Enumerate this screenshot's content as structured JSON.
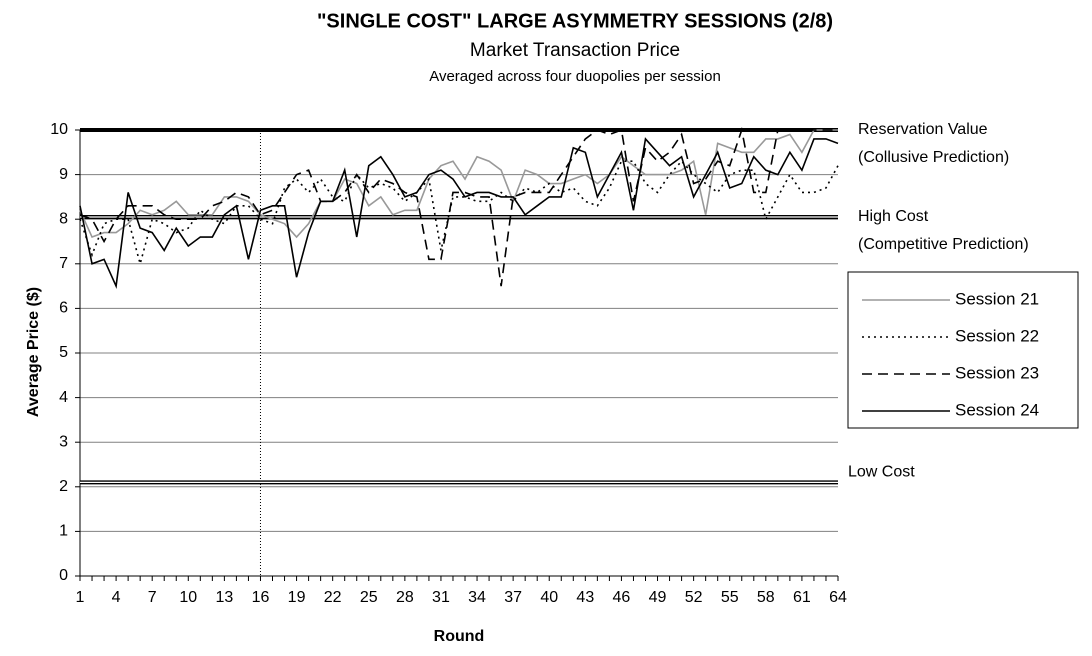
{
  "chart_data": {
    "type": "line",
    "title": "\"SINGLE COST\" LARGE ASYMMETRY SESSIONS (2/8)",
    "subtitle": "Market Transaction Price",
    "note": "Averaged across four duopolies per session",
    "y_label": "Average Price ($)",
    "x_label": "Round",
    "x": [
      1,
      2,
      3,
      4,
      5,
      6,
      7,
      8,
      9,
      10,
      11,
      12,
      13,
      14,
      15,
      16,
      17,
      18,
      19,
      20,
      21,
      22,
      23,
      24,
      25,
      26,
      27,
      28,
      29,
      30,
      31,
      32,
      33,
      34,
      35,
      36,
      37,
      38,
      39,
      40,
      41,
      42,
      43,
      44,
      45,
      46,
      47,
      48,
      49,
      50,
      51,
      52,
      53,
      54,
      55,
      56,
      57,
      58,
      59,
      60,
      61,
      62,
      63,
      64
    ],
    "xlim": [
      1,
      64
    ],
    "xticks": [
      1,
      4,
      7,
      10,
      13,
      16,
      19,
      22,
      25,
      28,
      31,
      34,
      37,
      40,
      43,
      46,
      49,
      52,
      55,
      58,
      61,
      64
    ],
    "ylim": [
      0,
      10
    ],
    "yticks": [
      0,
      1,
      2,
      3,
      4,
      5,
      6,
      7,
      8,
      9,
      10
    ],
    "grid": true,
    "vline": 16,
    "reference_lines": [
      {
        "value": 10,
        "label": [
          "Reservation Value",
          "(Collusive Prediction)"
        ],
        "style": "thick"
      },
      {
        "value": 8.05,
        "label": [
          "High Cost",
          "(Competitive Prediction)"
        ],
        "style": "double"
      },
      {
        "value": 2.1,
        "label": [
          "Low Cost"
        ],
        "style": "double"
      }
    ],
    "legend": "right",
    "series": [
      {
        "name": "Session 21",
        "color": "#999999",
        "dash": "solid",
        "values": [
          8.2,
          7.6,
          7.7,
          7.7,
          7.9,
          8.2,
          8.1,
          8.2,
          8.4,
          8.1,
          8.1,
          8.1,
          8.5,
          8.5,
          8.4,
          8.1,
          8.0,
          7.9,
          7.6,
          7.9,
          8.4,
          8.4,
          8.9,
          8.8,
          8.3,
          8.5,
          8.1,
          8.2,
          8.2,
          8.9,
          9.2,
          9.3,
          8.9,
          9.4,
          9.3,
          9.1,
          8.4,
          9.1,
          9.0,
          8.8,
          8.8,
          8.9,
          9.0,
          8.8,
          9.0,
          9.4,
          9.2,
          9.0,
          9.0,
          9.0,
          9.1,
          9.3,
          8.1,
          9.7,
          9.6,
          9.5,
          9.5,
          9.8,
          9.8,
          9.9,
          9.5,
          10.0,
          10.0,
          10.0
        ]
      },
      {
        "name": "Session 22",
        "color": "#000000",
        "dash": "dotted",
        "values": [
          8.0,
          7.2,
          7.9,
          8.0,
          8.0,
          7.0,
          8.0,
          7.9,
          7.7,
          7.8,
          8.2,
          8.0,
          7.9,
          8.3,
          8.3,
          8.0,
          7.9,
          8.7,
          8.9,
          8.6,
          8.9,
          8.5,
          8.4,
          9.0,
          8.7,
          8.8,
          8.7,
          8.4,
          8.6,
          8.9,
          7.3,
          8.5,
          8.5,
          8.4,
          8.4,
          8.6,
          8.4,
          8.7,
          8.6,
          8.8,
          8.6,
          8.7,
          8.4,
          8.3,
          8.7,
          9.3,
          9.3,
          8.8,
          8.6,
          9.0,
          9.3,
          9.0,
          8.8,
          8.6,
          9.0,
          9.1,
          9.1,
          8.0,
          8.5,
          9.0,
          8.6,
          8.6,
          8.7,
          9.2
        ]
      },
      {
        "name": "Session 23",
        "color": "#000000",
        "dash": "dashed",
        "values": [
          8.1,
          8.0,
          7.5,
          8.0,
          8.3,
          8.3,
          8.3,
          8.1,
          8.0,
          8.0,
          8.0,
          8.3,
          8.4,
          8.6,
          8.5,
          8.1,
          8.2,
          8.6,
          9.0,
          9.1,
          8.4,
          8.4,
          8.6,
          9.0,
          8.6,
          8.9,
          8.8,
          8.6,
          8.5,
          7.1,
          7.1,
          8.6,
          8.6,
          8.5,
          8.5,
          6.5,
          8.5,
          8.6,
          8.6,
          8.6,
          9.0,
          9.4,
          9.8,
          10.0,
          9.9,
          10.0,
          8.4,
          9.6,
          9.3,
          9.5,
          9.9,
          8.8,
          8.9,
          9.3,
          9.2,
          10.0,
          8.6,
          8.6,
          10.0,
          10.0,
          10.0,
          10.0,
          10.0,
          10.0
        ]
      },
      {
        "name": "Session 24",
        "color": "#000000",
        "dash": "solid",
        "values": [
          8.3,
          7.0,
          7.1,
          6.5,
          8.6,
          7.8,
          7.7,
          7.3,
          7.8,
          7.4,
          7.6,
          7.6,
          8.1,
          8.3,
          7.1,
          8.2,
          8.3,
          8.3,
          6.7,
          7.7,
          8.4,
          8.4,
          9.1,
          7.6,
          9.2,
          9.4,
          9.0,
          8.5,
          8.6,
          9.0,
          9.1,
          8.9,
          8.5,
          8.6,
          8.6,
          8.5,
          8.5,
          8.1,
          8.3,
          8.5,
          8.5,
          9.6,
          9.5,
          8.5,
          9.0,
          9.5,
          8.2,
          9.8,
          9.5,
          9.2,
          9.4,
          8.5,
          9.0,
          9.5,
          8.7,
          8.8,
          9.4,
          9.1,
          9.0,
          9.5,
          9.1,
          9.8,
          9.8,
          9.7
        ]
      }
    ]
  }
}
